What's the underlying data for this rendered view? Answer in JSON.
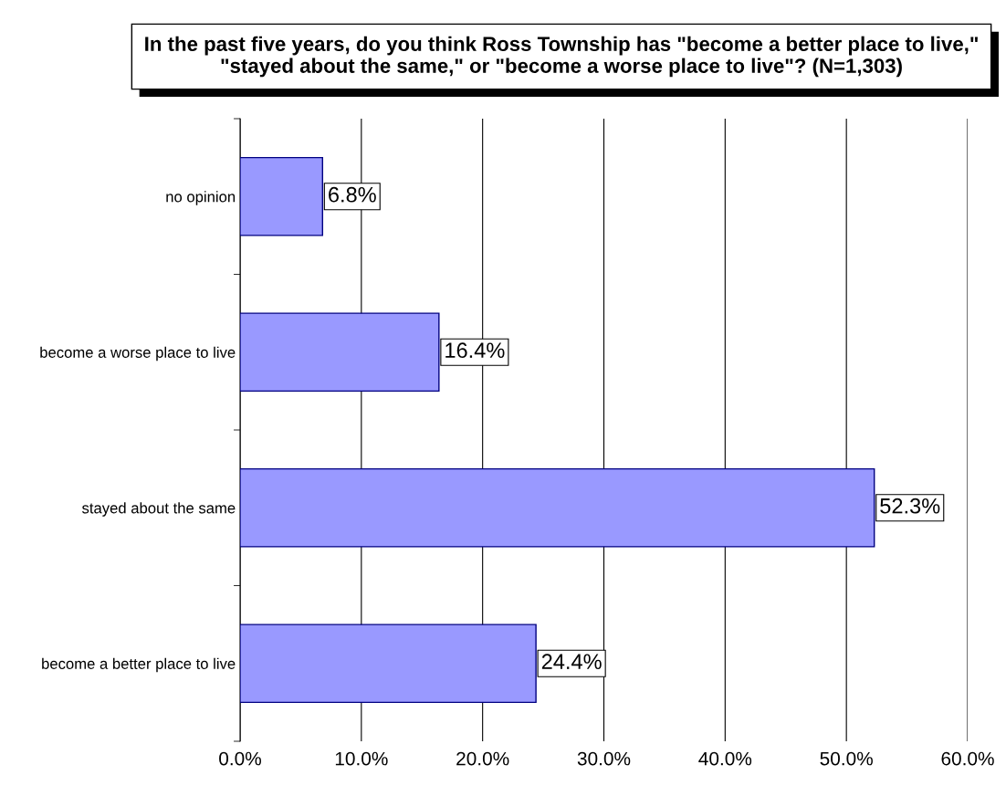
{
  "chart_data": {
    "type": "bar",
    "orientation": "horizontal",
    "title": "In the past five years, do you think Ross Township has \"become a better place to live,\" \"stayed about the same,\" or \"become a worse place to live\"? (N=1,303)",
    "categories": [
      "no opinion",
      "become a worse place to live",
      "stayed about the same",
      "become a better place to live"
    ],
    "values": [
      6.8,
      16.4,
      52.3,
      24.4
    ],
    "value_labels": [
      "6.8%",
      "16.4%",
      "52.3%",
      "24.4%"
    ],
    "color": "#9999ff",
    "xlim": [
      0,
      60
    ],
    "xticks": [
      {
        "value": 0,
        "label": "0.0%"
      },
      {
        "value": 10,
        "label": "10.0%"
      },
      {
        "value": 20,
        "label": "20.0%"
      },
      {
        "value": 30,
        "label": "30.0%"
      },
      {
        "value": 40,
        "label": "40.0%"
      },
      {
        "value": 50,
        "label": "50.0%"
      },
      {
        "value": 60,
        "label": "60.0%"
      }
    ],
    "grid": "x",
    "legend": false
  }
}
